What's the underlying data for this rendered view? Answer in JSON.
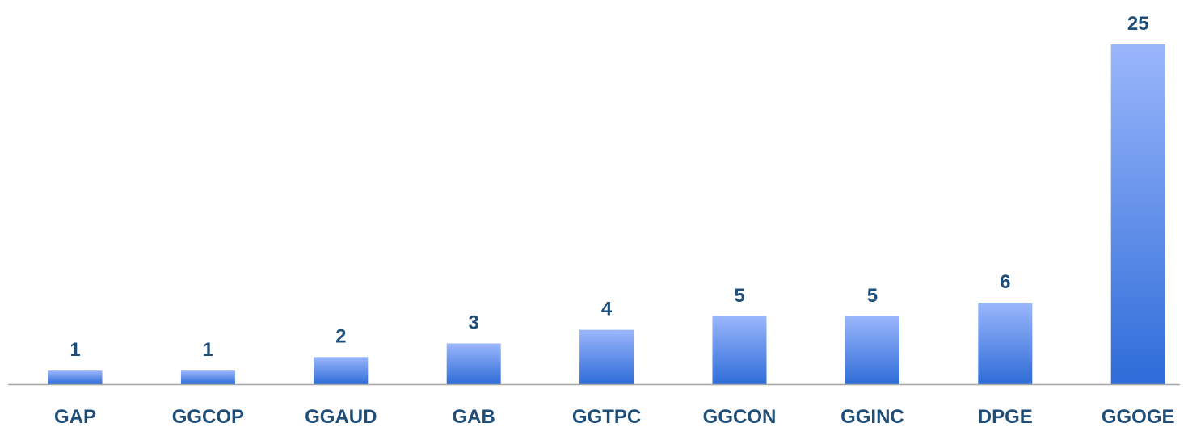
{
  "chart_data": {
    "type": "bar",
    "categories": [
      "GAP",
      "GGCOP",
      "GGAUD",
      "GAB",
      "GGTPC",
      "GGCON",
      "GGINC",
      "DPGE",
      "GGOGE"
    ],
    "values": [
      1,
      1,
      2,
      3,
      4,
      5,
      5,
      6,
      25
    ],
    "title": "",
    "xlabel": "",
    "ylabel": "",
    "ylim": [
      0,
      25
    ],
    "data_labels": true,
    "grid": false,
    "legend": "none"
  },
  "colors": {
    "bar_top": "#9ab6fb",
    "bar_bottom": "#2e6cd8",
    "label_text": "#1f4e79",
    "axis_line": "#a6a6a6"
  }
}
